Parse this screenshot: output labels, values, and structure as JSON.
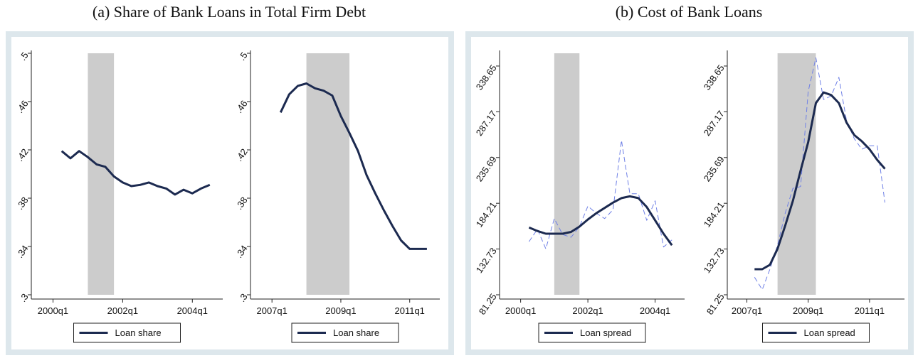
{
  "panel_titles": [
    "(a) Share of Bank Loans in Total Firm Debt",
    "(b) Cost of Bank Loans"
  ],
  "chart_data": [
    {
      "type": "line",
      "x": [
        "2000q2",
        "2000q3",
        "2000q4",
        "2001q1",
        "2001q2",
        "2001q3",
        "2001q4",
        "2002q1",
        "2002q2",
        "2002q3",
        "2002q4",
        "2003q1",
        "2003q2",
        "2003q3",
        "2003q4",
        "2004q1",
        "2004q2",
        "2004q3"
      ],
      "series": [
        {
          "name": "Loan share",
          "color": "#1c2a50",
          "dash": false,
          "values": [
            0.419,
            0.413,
            0.419,
            0.414,
            0.408,
            0.406,
            0.398,
            0.393,
            0.39,
            0.391,
            0.393,
            0.39,
            0.388,
            0.383,
            0.387,
            0.384,
            0.388,
            0.391
          ]
        }
      ],
      "xlim": [
        "1999q3",
        "2004q4"
      ],
      "xticks": [
        "2000q1",
        "2002q1",
        "2004q1"
      ],
      "ylim": [
        0.3,
        0.5
      ],
      "yticks": [
        {
          "value": 0.3,
          "label": ".3"
        },
        {
          "value": 0.34,
          "label": ".34"
        },
        {
          "value": 0.38,
          "label": ".38"
        },
        {
          "value": 0.42,
          "label": ".42"
        },
        {
          "value": 0.46,
          "label": ".46"
        },
        {
          "value": 0.5,
          "label": ".5"
        }
      ],
      "shaded_region": [
        "2001q1",
        "2001q4"
      ],
      "shade_color": "#cccccc",
      "grid": false
    },
    {
      "type": "line",
      "x": [
        "2007q2",
        "2007q3",
        "2007q4",
        "2008q1",
        "2008q2",
        "2008q3",
        "2008q4",
        "2009q1",
        "2009q2",
        "2009q3",
        "2009q4",
        "2010q1",
        "2010q2",
        "2010q3",
        "2010q4",
        "2011q1",
        "2011q2",
        "2011q3"
      ],
      "series": [
        {
          "name": "Loan share",
          "color": "#1c2a50",
          "dash": false,
          "values": [
            0.451,
            0.466,
            0.473,
            0.475,
            0.471,
            0.469,
            0.465,
            0.448,
            0.434,
            0.419,
            0.399,
            0.384,
            0.37,
            0.357,
            0.345,
            0.338,
            0.338,
            0.338
          ]
        }
      ],
      "xlim": [
        "2006q3",
        "2011q4"
      ],
      "xticks": [
        "2007q1",
        "2009q1",
        "2011q1"
      ],
      "ylim": [
        0.3,
        0.5
      ],
      "yticks": [
        {
          "value": 0.3,
          "label": ".3"
        },
        {
          "value": 0.34,
          "label": ".34"
        },
        {
          "value": 0.38,
          "label": ".38"
        },
        {
          "value": 0.42,
          "label": ".42"
        },
        {
          "value": 0.46,
          "label": ".46"
        },
        {
          "value": 0.5,
          "label": ".5"
        }
      ],
      "shaded_region": [
        "2008q1",
        "2009q2"
      ],
      "shade_color": "#cccccc",
      "grid": false
    },
    {
      "type": "line",
      "x": [
        "2000q2",
        "2000q3",
        "2000q4",
        "2001q1",
        "2001q2",
        "2001q3",
        "2001q4",
        "2002q1",
        "2002q2",
        "2002q3",
        "2002q4",
        "2003q1",
        "2003q2",
        "2003q3",
        "2003q4",
        "2004q1",
        "2004q2",
        "2004q3"
      ],
      "series": [
        {
          "color": "#6f80e6",
          "dash": true,
          "values": [
            141,
            155,
            133,
            167,
            149,
            146,
            158,
            181,
            173,
            167,
            177,
            255,
            195,
            195,
            165,
            187,
            135,
            143
          ]
        },
        {
          "name": "Loan spread",
          "color": "#1c2a50",
          "dash": false,
          "values": [
            157,
            153,
            150,
            150,
            150,
            152,
            158,
            166,
            173,
            179,
            185,
            190,
            192,
            190,
            180,
            165,
            150,
            137
          ]
        }
      ],
      "xlim": [
        "1999q3",
        "2004q4"
      ],
      "xticks": [
        "2000q1",
        "2002q1",
        "2004q1"
      ],
      "ylim": [
        81.25,
        353
      ],
      "yticks": [
        81.25,
        132.73,
        184.21,
        235.69,
        287.17,
        338.65
      ],
      "shaded_region": [
        "2001q1",
        "2001q4"
      ],
      "shade_color": "#cccccc",
      "grid": false
    },
    {
      "type": "line",
      "x": [
        "2007q2",
        "2007q3",
        "2007q4",
        "2008q1",
        "2008q2",
        "2008q3",
        "2008q4",
        "2009q1",
        "2009q2",
        "2009q3",
        "2009q4",
        "2010q1",
        "2010q2",
        "2010q3",
        "2010q4",
        "2011q1",
        "2011q2",
        "2011q3"
      ],
      "series": [
        {
          "color": "#6f80e6",
          "dash": true,
          "values": [
            101,
            87,
            110,
            137,
            173,
            201,
            203,
            310,
            348,
            301,
            305,
            326,
            277,
            257,
            245,
            249,
            249,
            185
          ]
        },
        {
          "name": "Loan spread",
          "color": "#1c2a50",
          "dash": false,
          "values": [
            110,
            110,
            115,
            133,
            159,
            187,
            221,
            253,
            297,
            309,
            306,
            297,
            275,
            261,
            254,
            245,
            233,
            223
          ]
        }
      ],
      "xlim": [
        "2006q3",
        "2012q1"
      ],
      "xticks": [
        "2007q1",
        "2009q1",
        "2011q1"
      ],
      "ylim": [
        81.25,
        353
      ],
      "yticks": [
        81.25,
        132.73,
        184.21,
        235.69,
        287.17,
        338.65
      ],
      "shaded_region": [
        "2008q1",
        "2009q2"
      ],
      "shade_color": "#cccccc",
      "grid": false
    }
  ]
}
